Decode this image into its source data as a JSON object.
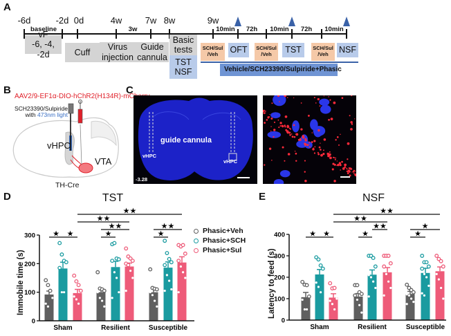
{
  "panels": {
    "a": "A",
    "b": "B",
    "c": "C",
    "d": "D",
    "e": "E"
  },
  "timeline": {
    "ticks": [
      "-6d",
      "-2d",
      "0d",
      "4w",
      "7w",
      "8w",
      "9w"
    ],
    "baseline": "baseline",
    "interval_3w": "3w",
    "vf_box": {
      "line1": "vF",
      "line2": "-6, -4, -2d"
    },
    "cuff": "Cuff",
    "virus": {
      "line1": "Virus",
      "line2": "injection"
    },
    "guide": {
      "line1": "Guide",
      "line2": "cannula"
    },
    "basic": {
      "line1": "Basic",
      "line2": "tests"
    },
    "basic_tests": {
      "line1": "TST",
      "line2": "NSF"
    },
    "intervals": [
      "10min",
      "72h",
      "10min",
      "72h",
      "10min"
    ],
    "drug": {
      "line1": "SCH/Sul",
      "line2": "/Veh"
    },
    "tests": [
      "OFT",
      "TST",
      "NSF"
    ],
    "treatment": "Vehicle/SCH23390/Sulpiride+Phasic",
    "colors": {
      "arrow": "#3a62a8",
      "gray": "#d4d4d4",
      "blue": "#b8cbea",
      "orange": "#f5c9a8"
    }
  },
  "panel_b": {
    "virus": "AAV2/9-EF1α-DIO-hChR2(H134R)-mCherry",
    "drug": "SCH23390/Sulpiride",
    "with": "with",
    "light": "473nm light",
    "vhpc": "vHPC",
    "vta": "VTA",
    "mouse": "TH-Cre"
  },
  "panel_c": {
    "cannula": "guide cannula",
    "vhpc_left": "vHPC",
    "vhpc_right": "vHPC",
    "coord": "-3.28"
  },
  "legend": [
    "Phasic+Veh",
    "Phasic+SCH",
    "Phasic+Sul"
  ],
  "chart_data": [
    {
      "type": "bar",
      "title": "TST",
      "ylabel": "Immobile time (s)",
      "ylim": [
        0,
        300
      ],
      "yticks": [
        0,
        100,
        200,
        300
      ],
      "categories": [
        "Sham",
        "Resilient",
        "Susceptible"
      ],
      "series": [
        {
          "name": "Phasic+Veh",
          "color": "#5f5f5f",
          "values": [
            92,
            100,
            100
          ],
          "sem": [
            12,
            12,
            12
          ],
          "points": [
            [
              142,
              125,
              105,
              80,
              60,
              50
            ],
            [
              170,
              113,
              110,
              105,
              100,
              80,
              70,
              50
            ],
            [
              180,
              115,
              112,
              110,
              100,
              90,
              70,
              50
            ]
          ]
        },
        {
          "name": "Phasic+SCH",
          "color": "#1a9ba0",
          "values": [
            183,
            188,
            186
          ],
          "sem": [
            22,
            20,
            20
          ],
          "points": [
            [
              272,
              232,
              210,
              205,
              185,
              100,
              100
            ],
            [
              268,
              272,
              218,
              215,
              210,
              170,
              150,
              100,
              80
            ],
            [
              280,
              237,
              216,
              205,
              195,
              160,
              140,
              110,
              105
            ]
          ]
        },
        {
          "name": "Phasic+Sul",
          "color": "#ee5b79",
          "values": [
            97,
            190,
            204
          ],
          "sem": [
            13,
            12,
            20
          ],
          "points": [
            [
              158,
              138,
              125,
              105,
              85,
              75,
              60
            ],
            [
              253,
              225,
              218,
              210,
              200,
              195,
              175,
              150,
              105
            ],
            [
              265,
              260,
              265,
              235,
              210,
              190,
              170,
              150,
              100
            ]
          ]
        }
      ],
      "comparisons": [
        {
          "from": [
            0,
            0
          ],
          "to": [
            0,
            1
          ],
          "label": "*"
        },
        {
          "from": [
            0,
            1
          ],
          "to": [
            0,
            2
          ],
          "label": "*"
        },
        {
          "from": [
            1,
            0
          ],
          "to": [
            1,
            1
          ],
          "label": "*"
        },
        {
          "from": [
            1,
            0
          ],
          "to": [
            1,
            2
          ],
          "label": "**"
        },
        {
          "from": [
            0,
            2
          ],
          "to": [
            1,
            2
          ],
          "label": "**"
        },
        {
          "from": [
            0,
            2
          ],
          "to": [
            2,
            2
          ],
          "label": "**"
        },
        {
          "from": [
            2,
            0
          ],
          "to": [
            2,
            1
          ],
          "label": "*"
        },
        {
          "from": [
            2,
            0
          ],
          "to": [
            2,
            2
          ],
          "label": "**"
        }
      ]
    },
    {
      "type": "bar",
      "title": "NSF",
      "ylabel": "Latency to feed (s)",
      "ylim": [
        0,
        400
      ],
      "yticks": [
        0,
        100,
        200,
        300,
        400
      ],
      "categories": [
        "Sham",
        "Resilient",
        "Susceptible"
      ],
      "series": [
        {
          "name": "Phasic+Veh",
          "color": "#5f5f5f",
          "values": [
            107,
            110,
            122
          ],
          "sem": [
            22,
            14,
            12
          ],
          "points": [
            [
              178,
              165,
              163,
              110,
              95,
              50,
              50
            ],
            [
              163,
              163,
              130,
              122,
              115,
              95,
              70,
              35
            ],
            [
              165,
              150,
              140,
              130,
              120,
              115,
              100,
              85,
              75
            ]
          ]
        },
        {
          "name": "Phasic+SCH",
          "color": "#1a9ba0",
          "values": [
            213,
            212,
            220
          ],
          "sem": [
            23,
            22,
            22
          ],
          "points": [
            [
              293,
              283,
              255,
              240,
              175,
              155,
              130
            ],
            [
              300,
              300,
              290,
              250,
              210,
              200,
              180,
              150,
              110
            ],
            [
              300,
              270,
              270,
              250,
              240,
              215,
              200,
              160,
              125,
              115
            ]
          ]
        },
        {
          "name": "Phasic+Sul",
          "color": "#ee5b79",
          "values": [
            105,
            223,
            228
          ],
          "sem": [
            18,
            22,
            20
          ],
          "points": [
            [
              172,
              148,
              150,
              100,
              90,
              75,
              50
            ],
            [
              300,
              300,
              300,
              265,
              250,
              215,
              180,
              150,
              115
            ],
            [
              300,
              285,
              275,
              250,
              215,
              190,
              150,
              100
            ]
          ]
        }
      ],
      "comparisons": [
        {
          "from": [
            0,
            0
          ],
          "to": [
            0,
            1
          ],
          "label": "*"
        },
        {
          "from": [
            0,
            1
          ],
          "to": [
            0,
            2
          ],
          "label": "*"
        },
        {
          "from": [
            1,
            0
          ],
          "to": [
            1,
            1
          ],
          "label": "*"
        },
        {
          "from": [
            1,
            1
          ],
          "to": [
            1,
            2
          ],
          "label": "**"
        },
        {
          "from": [
            0,
            2
          ],
          "to": [
            1,
            2
          ],
          "label": "**"
        },
        {
          "from": [
            0,
            2
          ],
          "to": [
            2,
            2
          ],
          "label": "**"
        },
        {
          "from": [
            2,
            0
          ],
          "to": [
            2,
            1
          ],
          "label": "*"
        },
        {
          "from": [
            2,
            0
          ],
          "to": [
            2,
            2
          ],
          "label": "*"
        }
      ]
    }
  ]
}
